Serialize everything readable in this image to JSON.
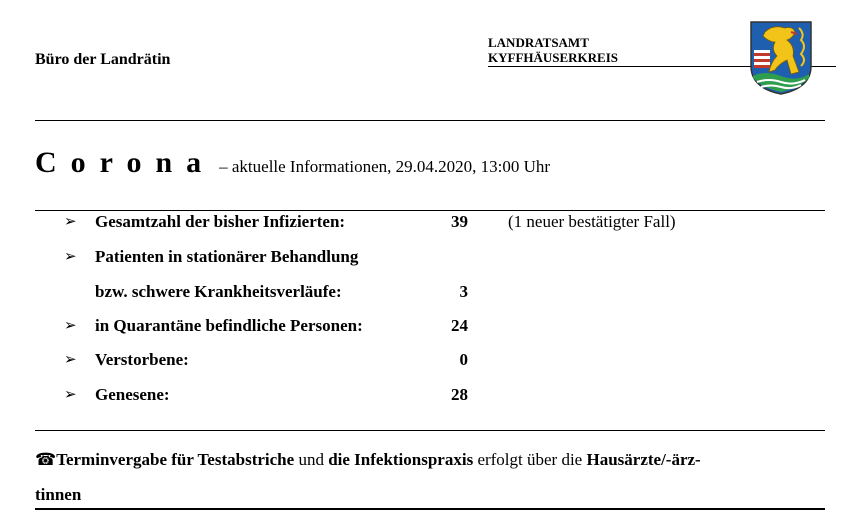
{
  "header": {
    "office": "Büro der Landrätin",
    "authority_line1": "LANDRATSAMT",
    "authority_line2": "KYFFHÄUSERKREIS",
    "logo": "kyffhaeuserkreis-coat-of-arms"
  },
  "title": {
    "main": "Corona",
    "subtitle": "– aktuelle Informationen, 29.04.2020, 13:00 Uhr"
  },
  "stats": [
    {
      "bullet": "➢",
      "label": "Gesamtzahl der bisher Infizierten:",
      "value": "39",
      "note": "(1 neuer bestätigter Fall)"
    },
    {
      "bullet": "➢",
      "label": "Patienten in stationärer Behandlung",
      "value": "",
      "note": ""
    },
    {
      "bullet": "",
      "label": "bzw. schwere Krankheitsverläufe:",
      "value": "3",
      "note": ""
    },
    {
      "bullet": "➢",
      "label": "in Quarantäne befindliche Personen:",
      "value": "24",
      "note": ""
    },
    {
      "bullet": "➢",
      "label": "Verstorbene:",
      "value": "0",
      "note": ""
    },
    {
      "bullet": "➢",
      "label": "Genesene:",
      "value": "28",
      "note": ""
    }
  ],
  "notice": {
    "icon": "telephone-icon",
    "part1": "Terminvergabe für Testabstriche",
    "part2": " und ",
    "part3": "die Infektionspraxis",
    "part4": " erfolgt über die ",
    "part5": "Hausärzte/-ärz-",
    "part6": "tinnen"
  }
}
